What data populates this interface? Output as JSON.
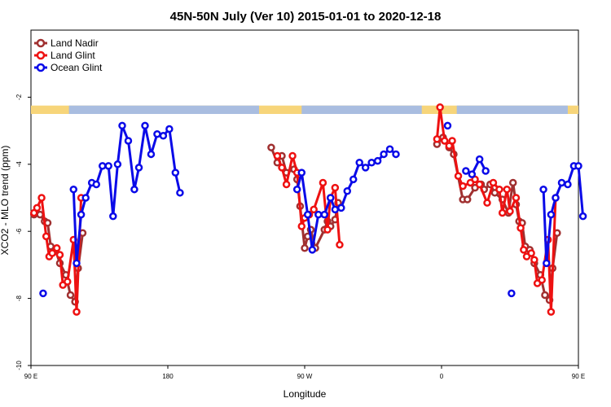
{
  "chart_data": {
    "type": "line",
    "title": "45N-50N July (Ver 10)   2015-01-01 to 2020-12-18",
    "xlabel": "Longitude",
    "ylabel": "XCO2 - MLO trend (ppm)",
    "xlim": [
      90,
      450
    ],
    "ylim": [
      -10,
      0
    ],
    "x_ticks": [
      {
        "value": 90,
        "label": "90 E"
      },
      {
        "value": 180,
        "label": "180"
      },
      {
        "value": 270,
        "label": "90 W"
      },
      {
        "value": 360,
        "label": "0"
      },
      {
        "value": 450,
        "label": "90 E"
      },
      {
        "value": 540,
        "label": "180"
      }
    ],
    "y_ticks": [
      -2,
      -4,
      -6,
      -8,
      -10
    ],
    "grid": false,
    "legend_position": "top-left",
    "land_bar": {
      "y_top": -2.25,
      "y_bottom": -2.5,
      "land_color": "#f7d57a",
      "ocean_color": "#a9bde0"
    },
    "series": [
      {
        "name": "Land Nadir",
        "color": "#a03030",
        "segments": [
          [
            [
              92,
              -5.5
            ],
            [
              96,
              -5.5
            ],
            [
              99,
              -5.7
            ],
            [
              101,
              -5.75
            ],
            [
              103,
              -6.45
            ],
            [
              106,
              -6.55
            ],
            [
              109,
              -6.95
            ],
            [
              113,
              -7.3
            ],
            [
              116,
              -7.9
            ],
            [
              119,
              -8.1
            ],
            [
              121,
              -7.1
            ],
            [
              124,
              -6.05
            ]
          ],
          [
            [
              248,
              -3.5
            ],
            [
              252,
              -3.95
            ],
            [
              255,
              -3.75
            ],
            [
              258,
              -4.25
            ],
            [
              263,
              -4.15
            ],
            [
              265,
              -4.45
            ],
            [
              267,
              -5.25
            ],
            [
              270,
              -6.5
            ],
            [
              272,
              -6.15
            ],
            [
              274,
              -5.95
            ],
            [
              277,
              -6.5
            ],
            [
              283,
              -5.95
            ],
            [
              285,
              -5.7
            ],
            [
              287,
              -5.85
            ],
            [
              290,
              -5.65
            ],
            [
              292,
              -5.15
            ]
          ],
          [
            [
              357,
              -3.4
            ],
            [
              361,
              -3.2
            ],
            [
              365,
              -3.5
            ],
            [
              368,
              -3.7
            ],
            [
              374,
              -5.05
            ],
            [
              377,
              -5.05
            ],
            [
              382,
              -4.7
            ],
            [
              386,
              -4.6
            ],
            [
              388,
              -4.75
            ],
            [
              392,
              -4.6
            ],
            [
              395,
              -4.85
            ],
            [
              400,
              -5.05
            ],
            [
              404,
              -5.45
            ],
            [
              407,
              -4.55
            ],
            [
              409,
              -5.2
            ],
            [
              411,
              -5.7
            ],
            [
              413,
              -5.75
            ],
            [
              415,
              -6.45
            ],
            [
              418,
              -6.55
            ],
            [
              421,
              -6.95
            ],
            [
              425,
              -7.3
            ],
            [
              428,
              -7.9
            ],
            [
              431,
              -8.05
            ],
            [
              433,
              -7.1
            ],
            [
              436,
              -6.05
            ]
          ]
        ]
      },
      {
        "name": "Land Glint",
        "color": "#ee1111",
        "segments": [
          [
            [
              92,
              -5.45
            ],
            [
              94,
              -5.3
            ],
            [
              97,
              -5.0
            ],
            [
              100,
              -6.15
            ],
            [
              102,
              -6.75
            ],
            [
              104,
              -6.65
            ],
            [
              107,
              -6.5
            ],
            [
              109,
              -6.7
            ],
            [
              111,
              -7.6
            ],
            [
              114,
              -7.5
            ],
            [
              118,
              -6.25
            ],
            [
              120,
              -8.4
            ],
            [
              123,
              -5.0
            ]
          ],
          [
            [
              252,
              -3.75
            ],
            [
              255,
              -4.1
            ],
            [
              258,
              -4.6
            ],
            [
              262,
              -3.75
            ],
            [
              265,
              -4.25
            ],
            [
              268,
              -5.85
            ],
            [
              270,
              -5.6
            ],
            [
              273,
              -5.5
            ],
            [
              276,
              -5.35
            ],
            [
              282,
              -4.55
            ],
            [
              285,
              -5.95
            ],
            [
              287,
              -5.0
            ],
            [
              290,
              -4.7
            ],
            [
              293,
              -6.4
            ]
          ],
          [
            [
              357,
              -3.25
            ],
            [
              359,
              -2.3
            ],
            [
              362,
              -3.3
            ],
            [
              365,
              -3.45
            ],
            [
              367,
              -3.3
            ],
            [
              371,
              -4.35
            ],
            [
              374,
              -4.65
            ],
            [
              379,
              -4.55
            ],
            [
              382,
              -4.45
            ],
            [
              385,
              -4.6
            ],
            [
              390,
              -5.15
            ],
            [
              394,
              -4.55
            ],
            [
              398,
              -4.75
            ],
            [
              400,
              -5.45
            ],
            [
              403,
              -4.75
            ],
            [
              405,
              -5.4
            ],
            [
              409,
              -5.0
            ],
            [
              412,
              -5.9
            ],
            [
              414,
              -6.55
            ],
            [
              416,
              -6.75
            ],
            [
              419,
              -6.65
            ],
            [
              421,
              -6.85
            ],
            [
              423,
              -7.55
            ],
            [
              426,
              -7.45
            ],
            [
              430,
              -6.25
            ],
            [
              432,
              -8.4
            ],
            [
              435,
              -5.0
            ]
          ]
        ]
      },
      {
        "name": "Ocean Glint",
        "color": "#0a0ae8",
        "segments": [
          [
            [
              118,
              -4.75
            ],
            [
              120,
              -6.95
            ],
            [
              123,
              -5.5
            ],
            [
              126,
              -5.0
            ],
            [
              130,
              -4.55
            ],
            [
              133,
              -4.6
            ],
            [
              137,
              -4.05
            ],
            [
              141,
              -4.05
            ],
            [
              144,
              -5.55
            ],
            [
              147,
              -4.0
            ],
            [
              150,
              -2.85
            ],
            [
              154,
              -3.3
            ],
            [
              158,
              -4.75
            ],
            [
              161,
              -4.1
            ],
            [
              165,
              -2.85
            ],
            [
              169,
              -3.7
            ],
            [
              173,
              -3.1
            ],
            [
              177,
              -3.15
            ],
            [
              181,
              -2.95
            ],
            [
              185,
              -4.25
            ],
            [
              188,
              -4.85
            ]
          ],
          [
            [
              265,
              -4.75
            ],
            [
              268,
              -4.25
            ],
            [
              272,
              -5.5
            ],
            [
              275,
              -6.55
            ],
            [
              279,
              -5.5
            ],
            [
              283,
              -5.5
            ],
            [
              287,
              -5.0
            ],
            [
              290,
              -5.35
            ],
            [
              294,
              -5.3
            ],
            [
              298,
              -4.8
            ],
            [
              302,
              -4.45
            ],
            [
              306,
              -3.95
            ],
            [
              310,
              -4.1
            ],
            [
              314,
              -3.95
            ],
            [
              318,
              -3.9
            ],
            [
              322,
              -3.7
            ],
            [
              326,
              -3.55
            ],
            [
              330,
              -3.7
            ]
          ],
          [
            [
              376,
              -4.2
            ],
            [
              380,
              -4.3
            ],
            [
              385,
              -3.85
            ],
            [
              389,
              -4.2
            ]
          ],
          [
            [
              427,
              -4.75
            ],
            [
              429,
              -6.95
            ],
            [
              432,
              -5.5
            ],
            [
              435,
              -5.0
            ],
            [
              439,
              -4.55
            ],
            [
              443,
              -4.6
            ],
            [
              447,
              -4.05
            ],
            [
              450,
              -4.05
            ],
            [
              453,
              -5.55
            ]
          ]
        ],
        "isolated_points": [
          [
            98,
            -7.85
          ],
          [
            364,
            -2.85
          ],
          [
            406,
            -7.85
          ]
        ]
      }
    ]
  }
}
